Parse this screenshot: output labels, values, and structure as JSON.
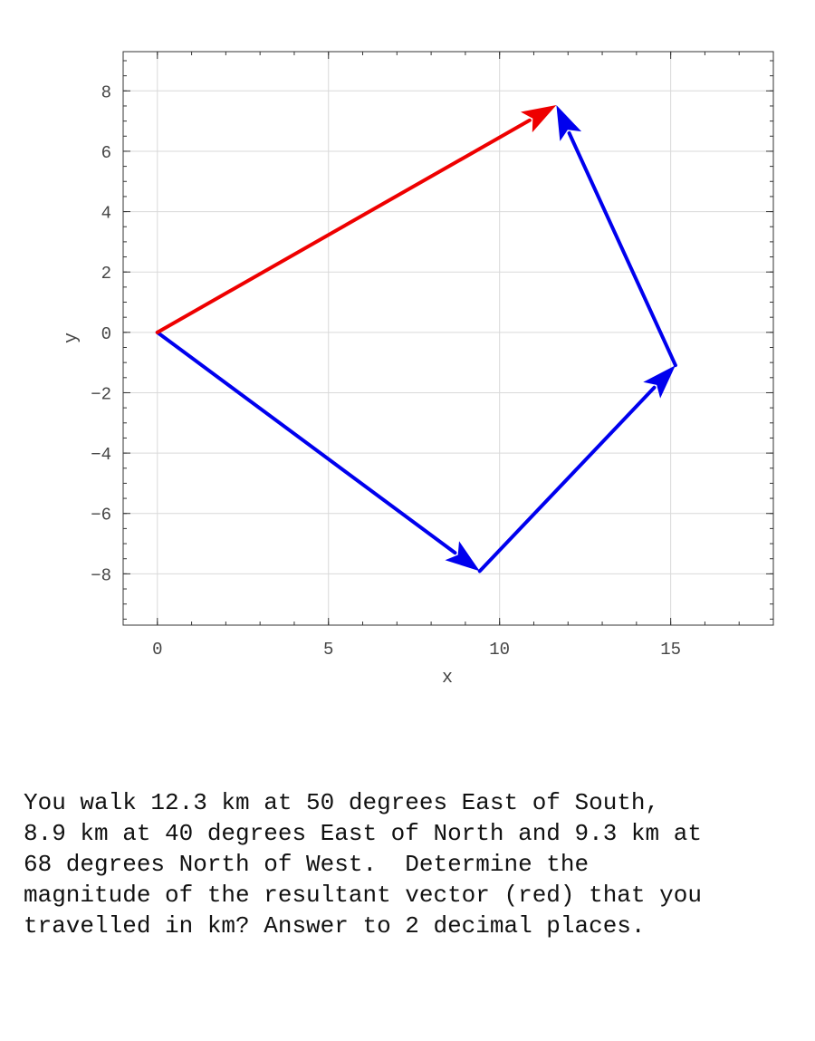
{
  "chart_data": {
    "type": "vector-plot",
    "xlabel": "x",
    "ylabel": "y",
    "xlim": [
      -1,
      18
    ],
    "ylim": [
      -9.7,
      9.3
    ],
    "xticks": [
      0,
      5,
      10,
      15
    ],
    "yticks": [
      -8,
      -6,
      -4,
      -2,
      0,
      2,
      4,
      6,
      8
    ],
    "grid": true,
    "colors": {
      "component": "#0000ee",
      "resultant": "#ee0000"
    },
    "vectors": [
      {
        "role": "component",
        "from": [
          0,
          0
        ],
        "to": [
          9.42,
          -7.91
        ]
      },
      {
        "role": "component",
        "from": [
          9.42,
          -7.91
        ],
        "to": [
          15.14,
          -1.09
        ]
      },
      {
        "role": "component",
        "from": [
          15.14,
          -1.09
        ],
        "to": [
          11.66,
          7.53
        ]
      },
      {
        "role": "resultant",
        "from": [
          0,
          0
        ],
        "to": [
          11.66,
          7.53
        ]
      }
    ]
  },
  "question": {
    "text": "You walk 12.3 km at 50 degrees East of South,\n8.9 km at 40 degrees East of North and 9.3 km at\n68 degrees North of West.  Determine the\nmagnitude of the resultant vector (red) that you\ntravelled in km? Answer to 2 decimal places."
  }
}
